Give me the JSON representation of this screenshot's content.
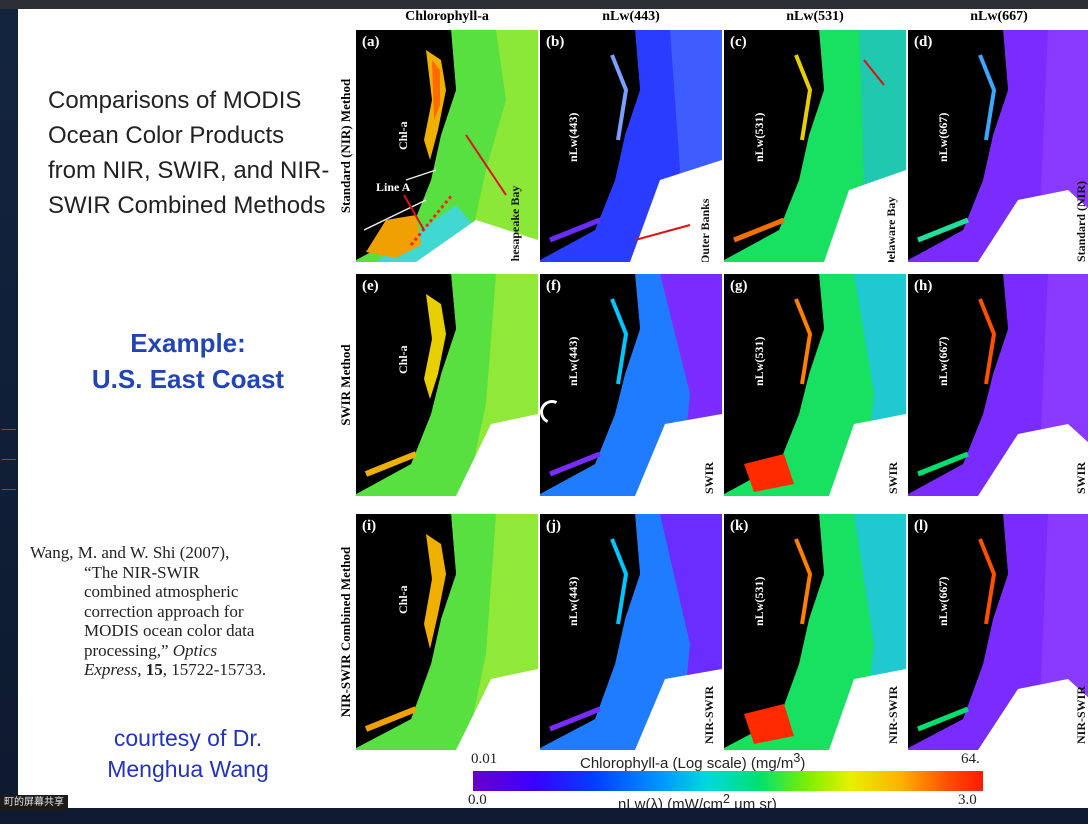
{
  "slide": {
    "title": "Comparisons of MODIS Ocean Color Products from NIR, SWIR, and NIR-SWIR Combined Methods",
    "example_line1": "Example:",
    "example_line2": "U.S. East Coast",
    "citation_line1": "Wang, M. and W. Shi (2007),",
    "citation_line2": "“The NIR-SWIR",
    "citation_line3": "combined atmospheric",
    "citation_line4": "correction approach for",
    "citation_line5": "MODIS ocean color data",
    "citation_line6_pre": "processing,” ",
    "citation_line6_journal": "Optics",
    "citation_line7_journal": "Express,",
    "citation_line7_volume": "15",
    "citation_line7_pages": ", 15722-15733.",
    "courtesy_line1": "courtesy of Dr.",
    "courtesy_line2": "Menghua Wang"
  },
  "figure": {
    "columns": [
      "Chlorophyll-a",
      "nLw(443)",
      "nLw(531)",
      "nLw(667)"
    ],
    "rows": [
      "Standard (NIR) Method",
      "SWIR Method",
      "NIR-SWIR Combined Method"
    ],
    "panel_labels": [
      "(a)",
      "(b)",
      "(c)",
      "(d)",
      "(e)",
      "(f)",
      "(g)",
      "(h)",
      "(i)",
      "(j)",
      "(k)",
      "(l)"
    ],
    "variable_labels": [
      "Chl-a",
      "nLw(443)",
      "nLw(531)",
      "nLw(667)"
    ],
    "method_tags": [
      "Standard (NIR)",
      "SWIR",
      "NIR-SWIR"
    ],
    "annotations": {
      "line_a": "Line A",
      "chesapeake": "Chesapeake Bay",
      "outer_banks": "Outer Banks",
      "delaware": "Delaware Bay"
    },
    "colorbar": {
      "chl_min": "0.01",
      "chl_label": "Chlorophyll-a (Log scale) (mg/m",
      "chl_unit_sup": "3",
      "chl_close": ")",
      "chl_max": "64.",
      "nlw_min": "0.0",
      "nlw_label_pre": "nLw(λ) (mW/cm",
      "nlw_unit_sup": "2",
      "nlw_label_post": " µm sr)",
      "nlw_max": "3.0"
    }
  },
  "overlay": {
    "share_tag": "町的屏幕共享"
  },
  "colors": {
    "example": "#2244b8",
    "courtesy": "#2233c0",
    "arrow": "#e01010"
  }
}
